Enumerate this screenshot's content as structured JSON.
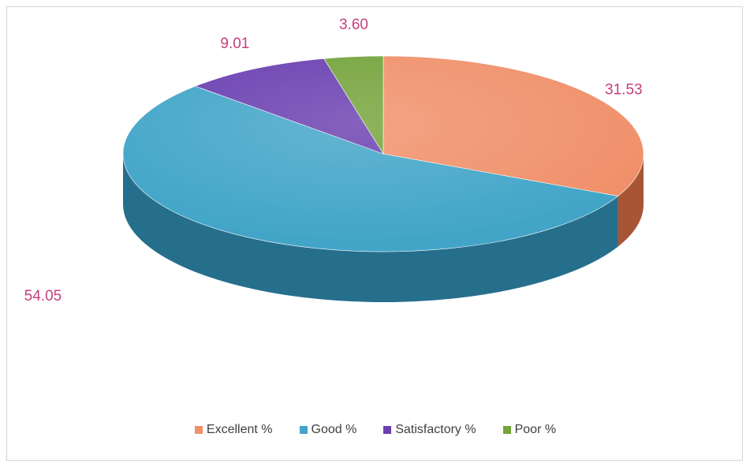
{
  "chart_data": {
    "type": "pie",
    "style": "3d",
    "categories": [
      "Excellent %",
      "Good %",
      "Satisfactory %",
      "Poor %"
    ],
    "values": [
      31.53,
      54.05,
      9.01,
      3.6
    ],
    "data_labels": [
      "31.53",
      "54.05",
      "9.01",
      "3.60"
    ],
    "colors": [
      "#f0906a",
      "#42a5c8",
      "#6a3fb0",
      "#74a33a"
    ],
    "side_colors": [
      "#a85535",
      "#266f8c",
      "#3e2272",
      "#4a6e1f"
    ],
    "label_color": "#c73e7e",
    "legend_position": "bottom",
    "title": ""
  }
}
